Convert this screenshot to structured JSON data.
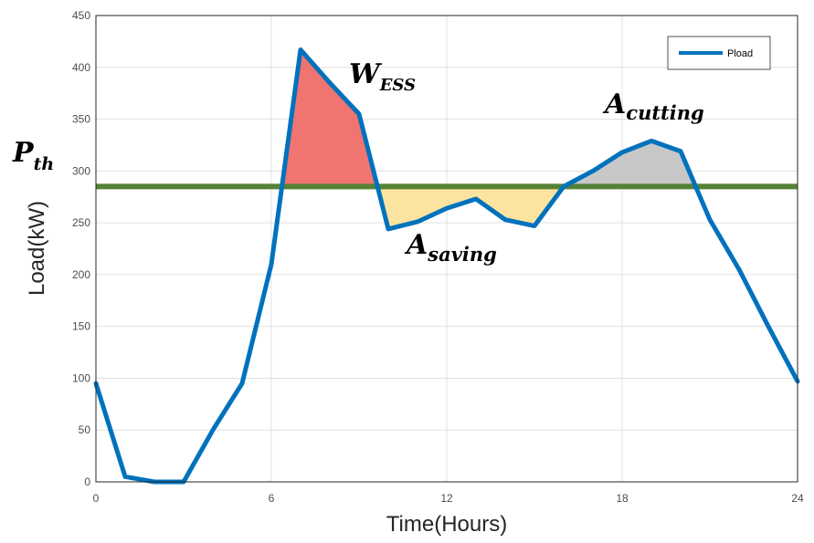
{
  "chart_data": {
    "type": "line",
    "xlabel": "Time(Hours)",
    "ylabel": "Load(kW)",
    "xlim": [
      0,
      24
    ],
    "ylim": [
      0,
      450
    ],
    "xticks": [
      0,
      6,
      12,
      18,
      24
    ],
    "yticks": [
      0,
      50,
      100,
      150,
      200,
      250,
      300,
      350,
      400,
      450
    ],
    "grid": true,
    "legend_position": "top-right",
    "threshold": {
      "y": 285,
      "color": "#548235"
    },
    "series": [
      {
        "name": "Pload",
        "color": "#0072BD",
        "x": [
          0,
          1,
          2,
          3,
          4,
          5,
          6,
          7,
          8,
          9,
          10,
          11,
          12,
          13,
          14,
          15,
          16,
          17,
          18,
          19,
          20,
          21,
          22,
          23,
          24
        ],
        "y": [
          95,
          5,
          0,
          0,
          50,
          95,
          210,
          417,
          385,
          355,
          244,
          251,
          264,
          273,
          253,
          247,
          285,
          300,
          318,
          329,
          319,
          253,
          205,
          150,
          97
        ]
      }
    ],
    "regions": [
      {
        "name": "W_ESS",
        "kind": "above",
        "x_from": 6.4,
        "x_to": 9.7,
        "color": "#F07470"
      },
      {
        "name": "A_saving",
        "kind": "below",
        "x_from": 9.7,
        "x_to": 16.0,
        "color": "#FCE4A0"
      },
      {
        "name": "A_cutting",
        "kind": "above",
        "x_from": 16.0,
        "x_to": 20.5,
        "color": "#C8C8C8"
      }
    ],
    "annotations": {
      "p_th": {
        "main": "P",
        "sub": "th"
      },
      "w_ess": {
        "main": "W",
        "sub": "ESS"
      },
      "a_saving": {
        "main": "A",
        "sub": "saving"
      },
      "a_cutting": {
        "main": "A",
        "sub": "cutting"
      }
    }
  }
}
